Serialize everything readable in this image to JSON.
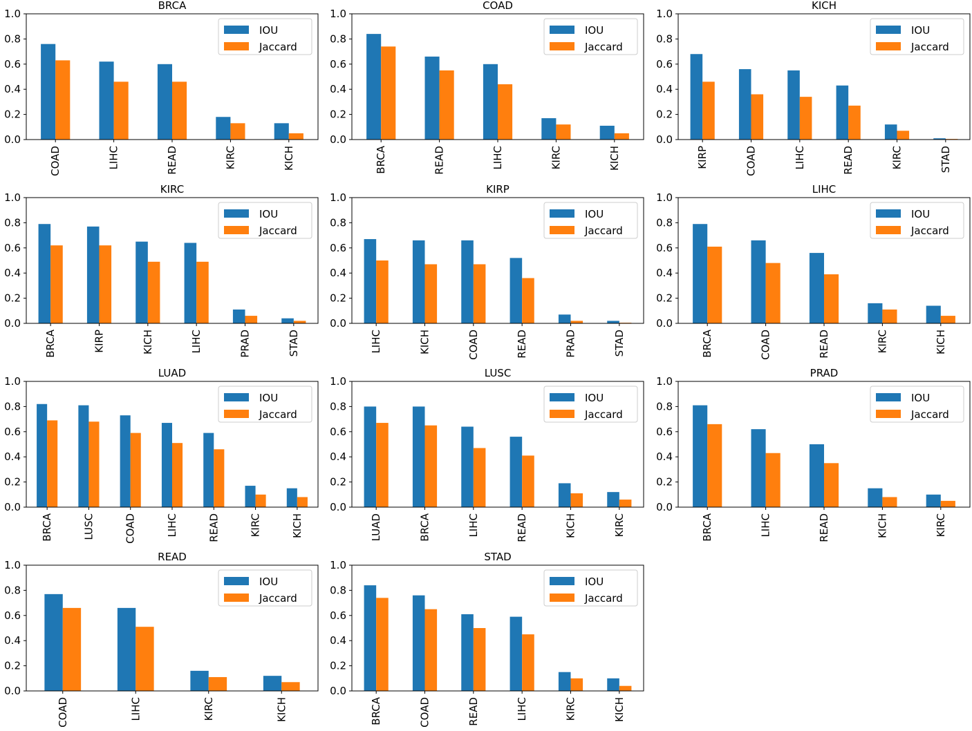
{
  "series_names": [
    "IOU",
    "Jaccard"
  ],
  "colors": {
    "iou": "#1f77b4",
    "jaccard": "#ff7f0e"
  },
  "y_ticks": [
    "0.0",
    "0.2",
    "0.4",
    "0.6",
    "0.8",
    "1.0"
  ],
  "chart_data": [
    {
      "type": "bar",
      "title": "BRCA",
      "ylim": [
        0,
        1
      ],
      "categories": [
        "COAD",
        "LIHC",
        "READ",
        "KIRC",
        "KICH"
      ],
      "series": [
        {
          "name": "IOU",
          "values": [
            0.76,
            0.62,
            0.6,
            0.18,
            0.13
          ]
        },
        {
          "name": "Jaccard",
          "values": [
            0.63,
            0.46,
            0.46,
            0.13,
            0.05
          ]
        }
      ],
      "legend": "top-right"
    },
    {
      "type": "bar",
      "title": "COAD",
      "ylim": [
        0,
        1
      ],
      "categories": [
        "BRCA",
        "READ",
        "LIHC",
        "KIRC",
        "KICH"
      ],
      "series": [
        {
          "name": "IOU",
          "values": [
            0.84,
            0.66,
            0.6,
            0.17,
            0.11
          ]
        },
        {
          "name": "Jaccard",
          "values": [
            0.74,
            0.55,
            0.44,
            0.12,
            0.05
          ]
        }
      ],
      "legend": "top-right"
    },
    {
      "type": "bar",
      "title": "KICH",
      "ylim": [
        0,
        1
      ],
      "categories": [
        "KIRP",
        "COAD",
        "LIHC",
        "READ",
        "KIRC",
        "STAD"
      ],
      "series": [
        {
          "name": "IOU",
          "values": [
            0.68,
            0.56,
            0.55,
            0.43,
            0.12,
            0.01
          ]
        },
        {
          "name": "Jaccard",
          "values": [
            0.46,
            0.36,
            0.34,
            0.27,
            0.07,
            0.005
          ]
        }
      ],
      "legend": "top-right"
    },
    {
      "type": "bar",
      "title": "KIRC",
      "ylim": [
        0,
        1
      ],
      "categories": [
        "BRCA",
        "KIRP",
        "KICH",
        "LIHC",
        "PRAD",
        "STAD"
      ],
      "series": [
        {
          "name": "IOU",
          "values": [
            0.79,
            0.77,
            0.65,
            0.64,
            0.11,
            0.04
          ]
        },
        {
          "name": "Jaccard",
          "values": [
            0.62,
            0.62,
            0.49,
            0.49,
            0.06,
            0.02
          ]
        }
      ],
      "legend": "top-right"
    },
    {
      "type": "bar",
      "title": "KIRP",
      "ylim": [
        0,
        1
      ],
      "categories": [
        "LIHC",
        "KICH",
        "COAD",
        "READ",
        "PRAD",
        "STAD"
      ],
      "series": [
        {
          "name": "IOU",
          "values": [
            0.67,
            0.66,
            0.66,
            0.52,
            0.07,
            0.02
          ]
        },
        {
          "name": "Jaccard",
          "values": [
            0.5,
            0.47,
            0.47,
            0.36,
            0.02,
            0.005
          ]
        }
      ],
      "legend": "top-right"
    },
    {
      "type": "bar",
      "title": "LIHC",
      "ylim": [
        0,
        1
      ],
      "categories": [
        "BRCA",
        "COAD",
        "READ",
        "KIRC",
        "KICH"
      ],
      "series": [
        {
          "name": "IOU",
          "values": [
            0.79,
            0.66,
            0.56,
            0.16,
            0.14
          ]
        },
        {
          "name": "Jaccard",
          "values": [
            0.61,
            0.48,
            0.39,
            0.11,
            0.06
          ]
        }
      ],
      "legend": "top-right"
    },
    {
      "type": "bar",
      "title": "LUAD",
      "ylim": [
        0,
        1
      ],
      "categories": [
        "BRCA",
        "LUSC",
        "COAD",
        "LIHC",
        "READ",
        "KIRC",
        "KICH"
      ],
      "series": [
        {
          "name": "IOU",
          "values": [
            0.82,
            0.81,
            0.73,
            0.67,
            0.59,
            0.17,
            0.15
          ]
        },
        {
          "name": "Jaccard",
          "values": [
            0.69,
            0.68,
            0.59,
            0.51,
            0.46,
            0.1,
            0.08
          ]
        }
      ],
      "legend": "top-right"
    },
    {
      "type": "bar",
      "title": "LUSC",
      "ylim": [
        0,
        1
      ],
      "categories": [
        "LUAD",
        "BRCA",
        "LIHC",
        "READ",
        "KICH",
        "KIRC"
      ],
      "series": [
        {
          "name": "IOU",
          "values": [
            0.8,
            0.8,
            0.64,
            0.56,
            0.19,
            0.12
          ]
        },
        {
          "name": "Jaccard",
          "values": [
            0.67,
            0.65,
            0.47,
            0.41,
            0.11,
            0.06
          ]
        }
      ],
      "legend": "top-right"
    },
    {
      "type": "bar",
      "title": "PRAD",
      "ylim": [
        0,
        1
      ],
      "categories": [
        "BRCA",
        "LIHC",
        "READ",
        "KICH",
        "KIRC"
      ],
      "series": [
        {
          "name": "IOU",
          "values": [
            0.81,
            0.62,
            0.5,
            0.15,
            0.1
          ]
        },
        {
          "name": "Jaccard",
          "values": [
            0.66,
            0.43,
            0.35,
            0.08,
            0.05
          ]
        }
      ],
      "legend": "top-right"
    },
    {
      "type": "bar",
      "title": "READ",
      "ylim": [
        0,
        1
      ],
      "categories": [
        "COAD",
        "LIHC",
        "KIRC",
        "KICH"
      ],
      "series": [
        {
          "name": "IOU",
          "values": [
            0.77,
            0.66,
            0.16,
            0.12
          ]
        },
        {
          "name": "Jaccard",
          "values": [
            0.66,
            0.51,
            0.11,
            0.07
          ]
        }
      ],
      "legend": "top-right"
    },
    {
      "type": "bar",
      "title": "STAD",
      "ylim": [
        0,
        1
      ],
      "categories": [
        "BRCA",
        "COAD",
        "READ",
        "LIHC",
        "KIRC",
        "KICH"
      ],
      "series": [
        {
          "name": "IOU",
          "values": [
            0.84,
            0.76,
            0.61,
            0.59,
            0.15,
            0.1
          ]
        },
        {
          "name": "Jaccard",
          "values": [
            0.74,
            0.65,
            0.5,
            0.45,
            0.1,
            0.04
          ]
        }
      ],
      "legend": "top-right"
    }
  ]
}
